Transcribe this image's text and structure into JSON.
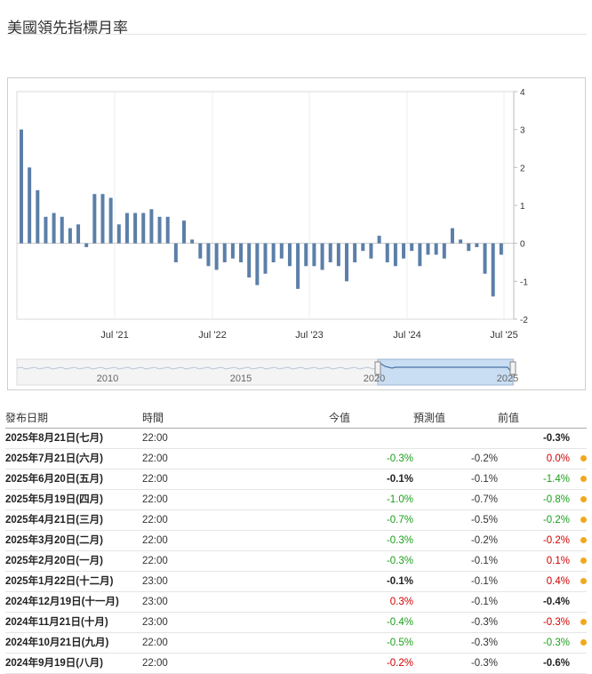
{
  "page": {
    "title": "美國領先指標月率"
  },
  "chart_data": {
    "type": "bar",
    "y_ticks": [
      4,
      3,
      2,
      1,
      0,
      -1,
      -2
    ],
    "ylim": [
      -2,
      4
    ],
    "x_tick_labels": [
      "Jul '21",
      "Jul '22",
      "Jul '23",
      "Jul '24",
      "Jul '25"
    ],
    "navigator_labels": [
      "2010",
      "2015",
      "2020",
      "2025"
    ],
    "values": [
      3.0,
      2.0,
      1.4,
      0.7,
      0.8,
      0.7,
      0.4,
      0.5,
      -0.1,
      1.3,
      1.3,
      1.2,
      0.5,
      0.8,
      0.8,
      0.8,
      0.9,
      0.7,
      0.7,
      -0.5,
      0.6,
      0.1,
      -0.4,
      -0.6,
      -0.7,
      -0.5,
      -0.4,
      -0.5,
      -0.9,
      -1.1,
      -0.8,
      -0.5,
      -0.4,
      -0.6,
      -1.2,
      -0.6,
      -0.6,
      -0.7,
      -0.5,
      -0.6,
      -1.0,
      -0.5,
      -0.2,
      -0.4,
      0.2,
      -0.5,
      -0.6,
      -0.4,
      -0.2,
      -0.6,
      -0.3,
      -0.3,
      -0.4,
      0.4,
      0.1,
      -0.2,
      -0.1,
      -0.8,
      -1.4,
      -0.3
    ]
  },
  "table": {
    "headers": {
      "date": "發布日期",
      "time": "時間",
      "actual": "今值",
      "forecast": "預測值",
      "previous": "前值"
    },
    "rows": [
      {
        "date": "2025年8月21日(七月)",
        "time": "22:00",
        "actual": "",
        "actual_class": "neu",
        "forecast": "",
        "previous": "-0.3%",
        "prev_class": "neu",
        "dot": false
      },
      {
        "date": "2025年7月21日(六月)",
        "time": "22:00",
        "actual": "-0.3%",
        "actual_class": "pos",
        "forecast": "-0.2%",
        "previous": "0.0%",
        "prev_class": "neg",
        "dot": true
      },
      {
        "date": "2025年6月20日(五月)",
        "time": "22:00",
        "actual": "-0.1%",
        "actual_class": "neu",
        "forecast": "-0.1%",
        "previous": "-1.4%",
        "prev_class": "pos",
        "dot": true
      },
      {
        "date": "2025年5月19日(四月)",
        "time": "22:00",
        "actual": "-1.0%",
        "actual_class": "pos",
        "forecast": "-0.7%",
        "previous": "-0.8%",
        "prev_class": "pos",
        "dot": true
      },
      {
        "date": "2025年4月21日(三月)",
        "time": "22:00",
        "actual": "-0.7%",
        "actual_class": "pos",
        "forecast": "-0.5%",
        "previous": "-0.2%",
        "prev_class": "pos",
        "dot": true
      },
      {
        "date": "2025年3月20日(二月)",
        "time": "22:00",
        "actual": "-0.3%",
        "actual_class": "pos",
        "forecast": "-0.2%",
        "previous": "-0.2%",
        "prev_class": "neg",
        "dot": true
      },
      {
        "date": "2025年2月20日(一月)",
        "time": "22:00",
        "actual": "-0.3%",
        "actual_class": "pos",
        "forecast": "-0.1%",
        "previous": "0.1%",
        "prev_class": "neg",
        "dot": true
      },
      {
        "date": "2025年1月22日(十二月)",
        "time": "23:00",
        "actual": "-0.1%",
        "actual_class": "neu",
        "forecast": "-0.1%",
        "previous": "0.4%",
        "prev_class": "neg",
        "dot": true
      },
      {
        "date": "2024年12月19日(十一月)",
        "time": "23:00",
        "actual": "0.3%",
        "actual_class": "neg",
        "forecast": "-0.1%",
        "previous": "-0.4%",
        "prev_class": "neu",
        "dot": false
      },
      {
        "date": "2024年11月21日(十月)",
        "time": "23:00",
        "actual": "-0.4%",
        "actual_class": "pos",
        "forecast": "-0.3%",
        "previous": "-0.3%",
        "prev_class": "neg",
        "dot": true
      },
      {
        "date": "2024年10月21日(九月)",
        "time": "22:00",
        "actual": "-0.5%",
        "actual_class": "pos",
        "forecast": "-0.3%",
        "previous": "-0.3%",
        "prev_class": "pos",
        "dot": true
      },
      {
        "date": "2024年9月19日(八月)",
        "time": "22:00",
        "actual": "-0.2%",
        "actual_class": "neg",
        "forecast": "-0.3%",
        "previous": "-0.6%",
        "prev_class": "neu",
        "dot": false
      }
    ]
  },
  "colors": {
    "bar": "#5b7fa8",
    "positive": "#1b9e1b",
    "negative": "#d00000",
    "dot": "#f0a81f"
  }
}
